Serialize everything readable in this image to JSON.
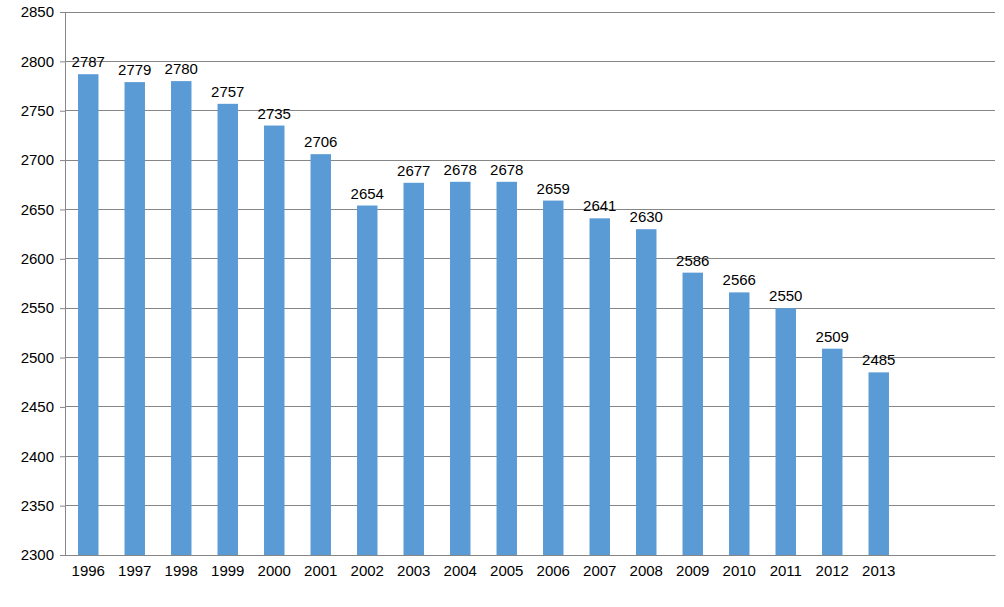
{
  "chart_data": {
    "type": "bar",
    "categories": [
      "1996",
      "1997",
      "1998",
      "1999",
      "2000",
      "2001",
      "2002",
      "2003",
      "2004",
      "2005",
      "2006",
      "2007",
      "2008",
      "2009",
      "2010",
      "2011",
      "2012",
      "2013",
      null,
      null
    ],
    "values": [
      2787,
      2779,
      2780,
      2757,
      2735,
      2706,
      2654,
      2677,
      2678,
      2678,
      2659,
      2641,
      2630,
      2586,
      2566,
      2550,
      2509,
      2485,
      null,
      null
    ],
    "color": "#5b9bd5",
    "ylim": [
      2300,
      2850
    ],
    "yticks": [
      2300,
      2350,
      2400,
      2450,
      2500,
      2550,
      2600,
      2650,
      2700,
      2750,
      2800,
      2850
    ],
    "grid": true,
    "data_labels": true
  }
}
